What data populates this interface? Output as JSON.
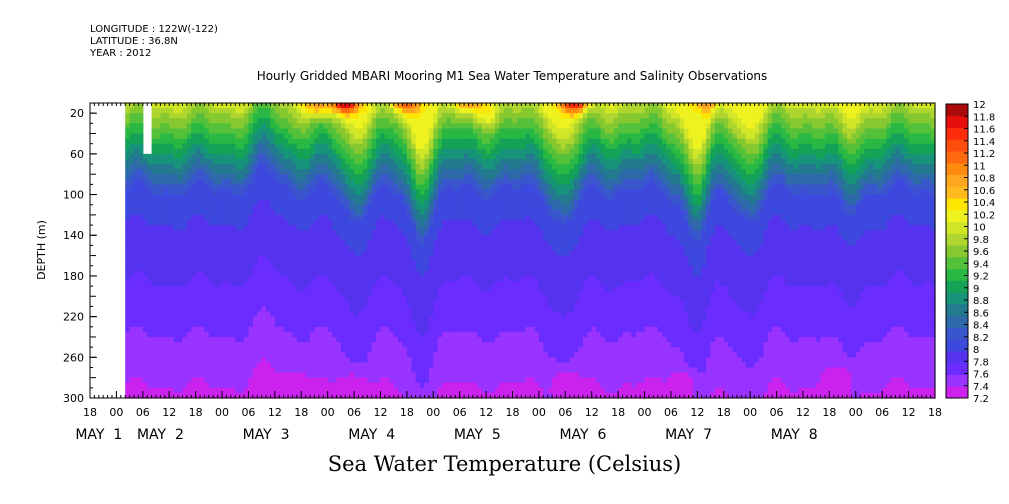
{
  "header": {
    "longitude": "LONGITUDE : 122W(-122)",
    "latitude": "LATITUDE : 36.8N",
    "year": "YEAR : 2012"
  },
  "caption": "Sea Water Temperature (Celsius)",
  "chart_data": {
    "type": "heatmap",
    "title": "Hourly Gridded MBARI Mooring M1 Sea Water Temperature and Salinity Observations",
    "ylabel": "DEPTH (m)",
    "xlabel": "",
    "x_unit": "hours since 2012-04-30 18:00",
    "xlim": [
      0,
      192
    ],
    "ylim": [
      300,
      10
    ],
    "y_ticks": [
      20,
      60,
      100,
      140,
      180,
      220,
      260,
      300
    ],
    "x_hour_ticks": [
      {
        "t": 0,
        "label": "18"
      },
      {
        "t": 6,
        "label": "00"
      },
      {
        "t": 12,
        "label": "06"
      },
      {
        "t": 18,
        "label": "12"
      },
      {
        "t": 24,
        "label": "18"
      },
      {
        "t": 30,
        "label": "00"
      },
      {
        "t": 36,
        "label": "06"
      },
      {
        "t": 42,
        "label": "12"
      },
      {
        "t": 48,
        "label": "18"
      },
      {
        "t": 54,
        "label": "00"
      },
      {
        "t": 60,
        "label": "06"
      },
      {
        "t": 66,
        "label": "12"
      },
      {
        "t": 72,
        "label": "18"
      },
      {
        "t": 78,
        "label": "00"
      },
      {
        "t": 84,
        "label": "06"
      },
      {
        "t": 90,
        "label": "12"
      },
      {
        "t": 96,
        "label": "18"
      },
      {
        "t": 102,
        "label": "00"
      },
      {
        "t": 108,
        "label": "06"
      },
      {
        "t": 114,
        "label": "12"
      },
      {
        "t": 120,
        "label": "18"
      },
      {
        "t": 126,
        "label": "00"
      },
      {
        "t": 132,
        "label": "06"
      },
      {
        "t": 138,
        "label": "12"
      },
      {
        "t": 144,
        "label": "18"
      },
      {
        "t": 150,
        "label": "00"
      },
      {
        "t": 156,
        "label": "06"
      },
      {
        "t": 162,
        "label": "12"
      },
      {
        "t": 168,
        "label": "18"
      },
      {
        "t": 174,
        "label": "00"
      },
      {
        "t": 180,
        "label": "06"
      },
      {
        "t": 186,
        "label": "12"
      },
      {
        "t": 192,
        "label": "18"
      }
    ],
    "x_day_labels": [
      {
        "t": 2,
        "label": "MAY  1"
      },
      {
        "t": 16,
        "label": "MAY  2"
      },
      {
        "t": 40,
        "label": "MAY  3"
      },
      {
        "t": 64,
        "label": "MAY  4"
      },
      {
        "t": 88,
        "label": "MAY  5"
      },
      {
        "t": 112,
        "label": "MAY  6"
      },
      {
        "t": 136,
        "label": "MAY  7"
      },
      {
        "t": 160,
        "label": "MAY  8"
      }
    ],
    "colorbar": {
      "levels": [
        "7.2",
        "7.4",
        "7.6",
        "7.8",
        "8",
        "8.2",
        "8.4",
        "8.6",
        "8.8",
        "9",
        "9.2",
        "9.4",
        "9.6",
        "9.8",
        "10",
        "10.2",
        "10.4",
        "10.6",
        "10.8",
        "11",
        "11.2",
        "11.4",
        "11.6",
        "11.8",
        "12"
      ],
      "colors": [
        "#cc22ee",
        "#9933ff",
        "#6a2cff",
        "#5533ee",
        "#3d48dd",
        "#3a56cc",
        "#2e6aaa",
        "#237a8f",
        "#17937a",
        "#14a356",
        "#2ab844",
        "#55c13a",
        "#86c830",
        "#aed62e",
        "#d2e628",
        "#eef21e",
        "#ffe600",
        "#ffbb1e",
        "#ffa51e",
        "#ff8a10",
        "#ff6a10",
        "#ff4d0e",
        "#ff2c0c",
        "#e60f0c",
        "#aa0a0a"
      ]
    },
    "data_start_hour": 8,
    "gap": {
      "x": [
        12,
        14
      ],
      "depth": [
        10,
        60
      ]
    },
    "hot_spots": [
      {
        "t": 52,
        "depth": 14,
        "value": 11.2
      },
      {
        "t": 58,
        "depth": 10,
        "value": 12.0
      },
      {
        "t": 72,
        "depth": 10,
        "value": 11.4
      },
      {
        "t": 86,
        "depth": 10,
        "value": 11.2
      },
      {
        "t": 90,
        "depth": 24,
        "value": 10.6
      },
      {
        "t": 110,
        "depth": 10,
        "value": 11.8
      },
      {
        "t": 140,
        "depth": 10,
        "value": 10.8
      }
    ],
    "cold_patches": [
      {
        "t": 47,
        "depth": 292,
        "value": 7.3
      },
      {
        "t": 60,
        "depth": 290,
        "value": 7.3
      },
      {
        "t": 108,
        "depth": 286,
        "value": 7.2
      },
      {
        "t": 135,
        "depth": 286,
        "value": 7.3
      },
      {
        "t": 170,
        "depth": 284,
        "value": 7.2
      }
    ],
    "thermocline_anomalies": [
      {
        "t": 40,
        "shift": -18
      },
      {
        "t": 60,
        "shift": 28
      },
      {
        "t": 75,
        "shift": 45
      },
      {
        "t": 108,
        "shift": 35
      },
      {
        "t": 138,
        "shift": 50
      },
      {
        "t": 150,
        "shift": 30
      },
      {
        "t": 172,
        "shift": 22
      }
    ]
  }
}
